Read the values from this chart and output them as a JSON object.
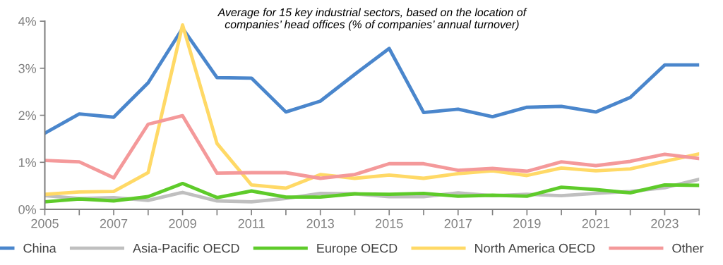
{
  "chart_data": {
    "type": "line",
    "title": "Average for 15 key industrial sectors, based on the location of\ncompanies’ head offices (% of companies’ annual turnover)",
    "x": [
      2005,
      2006,
      2007,
      2008,
      2009,
      2010,
      2011,
      2012,
      2013,
      2014,
      2015,
      2016,
      2017,
      2018,
      2019,
      2020,
      2021,
      2022,
      2023,
      2024
    ],
    "series": [
      {
        "name": "China",
        "color": "#4a86cc",
        "values": [
          1.62,
          2.03,
          1.96,
          2.69,
          3.85,
          2.8,
          2.79,
          2.07,
          2.3,
          2.87,
          3.42,
          2.06,
          2.13,
          1.97,
          2.17,
          2.19,
          2.07,
          2.38,
          3.07,
          3.07
        ]
      },
      {
        "name": "Asia-Pacific OECD",
        "color": "#bfbfbf",
        "values": [
          0.29,
          0.23,
          0.25,
          0.19,
          0.36,
          0.18,
          0.16,
          0.23,
          0.34,
          0.33,
          0.27,
          0.27,
          0.35,
          0.29,
          0.32,
          0.29,
          0.34,
          0.38,
          0.46,
          0.64
        ]
      },
      {
        "name": "Europe OECD",
        "color": "#5ecb2a",
        "values": [
          0.16,
          0.22,
          0.18,
          0.27,
          0.55,
          0.25,
          0.39,
          0.26,
          0.26,
          0.33,
          0.32,
          0.34,
          0.28,
          0.3,
          0.28,
          0.47,
          0.42,
          0.35,
          0.52,
          0.51
        ]
      },
      {
        "name": "North America OECD",
        "color": "#ffd966",
        "values": [
          0.32,
          0.37,
          0.38,
          0.78,
          3.92,
          1.4,
          0.52,
          0.45,
          0.74,
          0.66,
          0.73,
          0.66,
          0.76,
          0.82,
          0.72,
          0.88,
          0.82,
          0.86,
          1.02,
          1.18
        ]
      },
      {
        "name": "Other",
        "color": "#f4999a",
        "values": [
          1.04,
          1.01,
          0.67,
          1.81,
          1.99,
          0.77,
          0.78,
          0.78,
          0.66,
          0.74,
          0.97,
          0.97,
          0.83,
          0.87,
          0.81,
          1.01,
          0.93,
          1.02,
          1.17,
          1.08
        ]
      }
    ],
    "xlim": [
      2005,
      2024
    ],
    "xticks": [
      2005,
      {
        "value": 2006,
        "label": null
      },
      2007,
      {
        "value": 2008,
        "label": null
      },
      2009,
      {
        "value": 2010,
        "label": null
      },
      2011,
      {
        "value": 2012,
        "label": null
      },
      2013,
      {
        "value": 2014,
        "label": null
      },
      2015,
      {
        "value": 2016,
        "label": null
      },
      2017,
      {
        "value": 2018,
        "label": null
      },
      2019,
      {
        "value": 2020,
        "label": null
      },
      2021,
      {
        "value": 2022,
        "label": null
      },
      2023,
      {
        "value": 2024,
        "label": null
      }
    ],
    "ylim": [
      0,
      4
    ],
    "yticks": [
      {
        "value": 0,
        "label": "0%"
      },
      {
        "value": 1,
        "label": "1%"
      },
      {
        "value": 2,
        "label": "2%"
      },
      {
        "value": 3,
        "label": "3%"
      },
      {
        "value": 4,
        "label": "4%"
      }
    ],
    "legend": "bottom",
    "grid": false,
    "marker": "none",
    "line_style": "solid"
  }
}
